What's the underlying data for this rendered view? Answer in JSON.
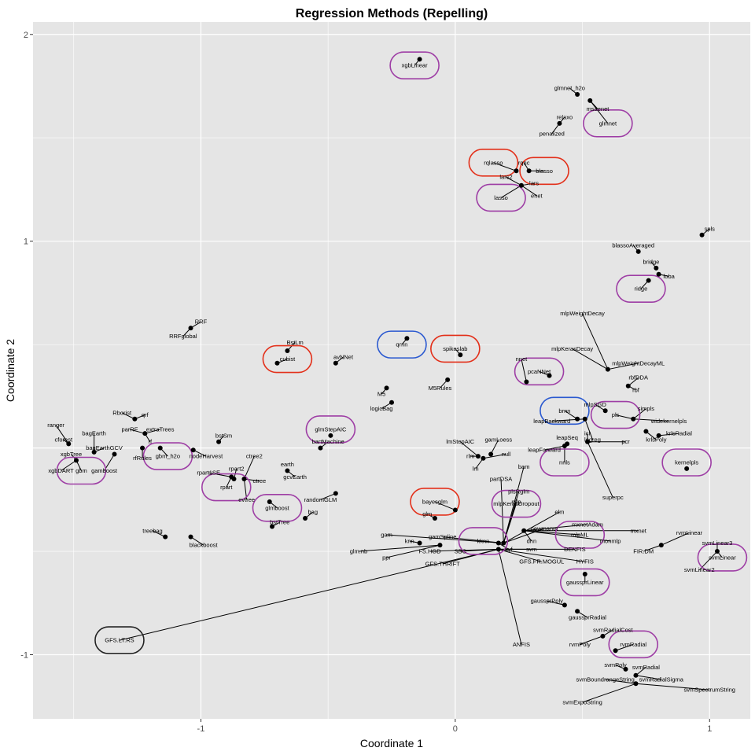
{
  "chart_data": {
    "type": "scatter",
    "title": "Regression Methods (Repelling)",
    "xlabel": "Coordinate 1",
    "ylabel": "Coordinate 2",
    "xlim": [
      -1.66,
      1.16
    ],
    "ylim": [
      -1.31,
      2.06
    ],
    "xticks": [
      -1,
      0,
      1
    ],
    "yticks": [
      -1,
      1,
      2
    ],
    "grid": true,
    "background": "#e5e5e5",
    "gridline_color": "#ffffff",
    "point_color": "#000000",
    "highlight_colors": {
      "purple": "#9e3ea5",
      "red": "#e3301a",
      "blue": "#2a59d0",
      "black": "#222222"
    },
    "points": [
      {
        "label": "xgbLinear",
        "x": -0.14,
        "y": 1.88,
        "lx": -0.16,
        "ly": 1.85,
        "hl": "purple"
      },
      {
        "label": "glmnet_h2o",
        "x": 0.48,
        "y": 1.71,
        "lx": 0.45,
        "ly": 1.74
      },
      {
        "label": "msaenet",
        "x": 0.53,
        "y": 1.68,
        "lx": 0.56,
        "ly": 1.64
      },
      {
        "label": "glmnet",
        "x": 0.53,
        "y": 1.68,
        "lx": 0.6,
        "ly": 1.57,
        "hl": "purple"
      },
      {
        "label": "relaxo",
        "x": 0.41,
        "y": 1.57,
        "lx": 0.43,
        "ly": 1.6
      },
      {
        "label": "penalized",
        "x": 0.41,
        "y": 1.57,
        "lx": 0.38,
        "ly": 1.52
      },
      {
        "label": "rqlasso",
        "x": 0.24,
        "y": 1.34,
        "lx": 0.15,
        "ly": 1.38,
        "hl": "red"
      },
      {
        "label": "rqnc",
        "x": 0.29,
        "y": 1.34,
        "lx": 0.27,
        "ly": 1.38
      },
      {
        "label": "blasso",
        "x": 0.29,
        "y": 1.34,
        "lx": 0.35,
        "ly": 1.34,
        "hl": "red"
      },
      {
        "label": "lars2",
        "x": 0.26,
        "y": 1.27,
        "lx": 0.2,
        "ly": 1.31
      },
      {
        "label": "lars",
        "x": 0.26,
        "y": 1.27,
        "lx": 0.31,
        "ly": 1.28
      },
      {
        "label": "lasso",
        "x": 0.26,
        "y": 1.27,
        "lx": 0.18,
        "ly": 1.21,
        "hl": "purple"
      },
      {
        "label": "enet",
        "x": 0.26,
        "y": 1.27,
        "lx": 0.32,
        "ly": 1.22
      },
      {
        "label": "spls",
        "x": 0.97,
        "y": 1.03,
        "lx": 1.0,
        "ly": 1.06
      },
      {
        "label": "blassoAveraged",
        "x": 0.72,
        "y": 0.95,
        "lx": 0.7,
        "ly": 0.98
      },
      {
        "label": "bridge",
        "x": 0.79,
        "y": 0.87,
        "lx": 0.77,
        "ly": 0.9
      },
      {
        "label": "foba",
        "x": 0.8,
        "y": 0.84,
        "lx": 0.84,
        "ly": 0.83
      },
      {
        "label": "ridge",
        "x": 0.76,
        "y": 0.81,
        "lx": 0.73,
        "ly": 0.77,
        "hl": "purple"
      },
      {
        "label": "RRF",
        "x": -1.04,
        "y": 0.58,
        "lx": -1.0,
        "ly": 0.61
      },
      {
        "label": "RRFglobal",
        "x": -1.04,
        "y": 0.58,
        "lx": -1.07,
        "ly": 0.54
      },
      {
        "label": "mlpWeightDecay",
        "x": 0.6,
        "y": 0.38,
        "lx": 0.5,
        "ly": 0.65
      },
      {
        "label": "mlpKerasDecay",
        "x": 0.6,
        "y": 0.38,
        "lx": 0.46,
        "ly": 0.48
      },
      {
        "label": "mlpWeightDecayML",
        "x": 0.6,
        "y": 0.38,
        "lx": 0.72,
        "ly": 0.41
      },
      {
        "label": "BstLm",
        "x": -0.66,
        "y": 0.47,
        "lx": -0.63,
        "ly": 0.51
      },
      {
        "label": "cubist",
        "x": -0.7,
        "y": 0.41,
        "lx": -0.66,
        "ly": 0.43,
        "hl": "red"
      },
      {
        "label": "avNNet",
        "x": -0.47,
        "y": 0.41,
        "lx": -0.44,
        "ly": 0.44
      },
      {
        "label": "qrnn",
        "x": -0.19,
        "y": 0.53,
        "lx": -0.21,
        "ly": 0.5,
        "hl": "blue"
      },
      {
        "label": "spikeslab",
        "x": 0.02,
        "y": 0.45,
        "lx": 0.0,
        "ly": 0.48,
        "hl": "red"
      },
      {
        "label": "nnet",
        "x": 0.28,
        "y": 0.32,
        "lx": 0.26,
        "ly": 0.43
      },
      {
        "label": "pcaNNet",
        "x": 0.37,
        "y": 0.35,
        "lx": 0.33,
        "ly": 0.37,
        "hl": "purple"
      },
      {
        "label": "M5",
        "x": -0.27,
        "y": 0.29,
        "lx": -0.29,
        "ly": 0.26
      },
      {
        "label": "M5Rules",
        "x": -0.03,
        "y": 0.33,
        "lx": -0.06,
        "ly": 0.29
      },
      {
        "label": "logicBag",
        "x": -0.25,
        "y": 0.22,
        "lx": -0.29,
        "ly": 0.19
      },
      {
        "label": "rbfDDA",
        "x": 0.68,
        "y": 0.3,
        "lx": 0.72,
        "ly": 0.34
      },
      {
        "label": "rbf",
        "x": 0.68,
        "y": 0.3,
        "lx": 0.71,
        "ly": 0.28
      },
      {
        "label": "mlpSGD",
        "x": 0.59,
        "y": 0.18,
        "lx": 0.55,
        "ly": 0.21
      },
      {
        "label": "simpls",
        "x": 0.7,
        "y": 0.14,
        "lx": 0.75,
        "ly": 0.19
      },
      {
        "label": "pls",
        "x": 0.7,
        "y": 0.14,
        "lx": 0.63,
        "ly": 0.16,
        "hl": "purple"
      },
      {
        "label": "widekernelpls",
        "x": 0.7,
        "y": 0.14,
        "lx": 0.84,
        "ly": 0.13
      },
      {
        "label": "krlsRadial",
        "x": 0.8,
        "y": 0.06,
        "lx": 0.88,
        "ly": 0.07
      },
      {
        "label": "krlsPoly",
        "x": 0.75,
        "y": 0.08,
        "lx": 0.79,
        "ly": 0.04
      },
      {
        "label": "brnn",
        "x": 0.48,
        "y": 0.14,
        "lx": 0.43,
        "ly": 0.18,
        "hl": "blue"
      },
      {
        "label": "leapBackward",
        "x": 0.51,
        "y": 0.14,
        "lx": 0.38,
        "ly": 0.13
      },
      {
        "label": "leapSeq",
        "x": 0.44,
        "y": 0.02,
        "lx": 0.44,
        "ly": 0.05
      },
      {
        "label": "logreg",
        "x": 0.51,
        "y": 0.14,
        "lx": 0.54,
        "ly": 0.04
      },
      {
        "label": "icr",
        "x": 0.52,
        "y": 0.03,
        "lx": 0.52,
        "ly": 0.07
      },
      {
        "label": "pcr",
        "x": 0.52,
        "y": 0.03,
        "lx": 0.67,
        "ly": 0.03
      },
      {
        "label": "leapForward",
        "x": 0.43,
        "y": 0.01,
        "lx": 0.35,
        "ly": -0.01
      },
      {
        "label": "nnls",
        "x": 0.43,
        "y": 0.01,
        "lx": 0.43,
        "ly": -0.07,
        "hl": "purple"
      },
      {
        "label": "superpc",
        "x": 0.52,
        "y": 0.03,
        "lx": 0.62,
        "ly": -0.24
      },
      {
        "label": "kernelpls",
        "x": 0.91,
        "y": -0.1,
        "lx": 0.91,
        "ly": -0.07,
        "hl": "purple"
      },
      {
        "label": "Rborist",
        "x": -1.26,
        "y": 0.14,
        "lx": -1.31,
        "ly": 0.17
      },
      {
        "label": "qrf",
        "x": -1.26,
        "y": 0.14,
        "lx": -1.22,
        "ly": 0.16
      },
      {
        "label": "parRF",
        "x": -1.22,
        "y": 0.07,
        "lx": -1.28,
        "ly": 0.09
      },
      {
        "label": "extraTrees",
        "x": -1.22,
        "y": 0.07,
        "lx": -1.16,
        "ly": 0.09
      },
      {
        "label": "rf",
        "x": -1.22,
        "y": 0.07,
        "lx": -1.2,
        "ly": 0.03
      },
      {
        "label": "rfRules",
        "x": -1.23,
        "y": 0.0,
        "lx": -1.23,
        "ly": -0.05
      },
      {
        "label": "gbm_h2o",
        "x": -1.16,
        "y": 0.0,
        "lx": -1.13,
        "ly": -0.04,
        "hl": "purple"
      },
      {
        "label": "ranger",
        "x": -1.52,
        "y": 0.02,
        "lx": -1.57,
        "ly": 0.11
      },
      {
        "label": "cforest",
        "x": -1.52,
        "y": 0.02,
        "lx": -1.54,
        "ly": 0.04
      },
      {
        "label": "bagEarth",
        "x": -1.42,
        "y": -0.02,
        "lx": -1.42,
        "ly": 0.07
      },
      {
        "label": "xgbTree",
        "x": -1.49,
        "y": -0.06,
        "lx": -1.51,
        "ly": -0.03
      },
      {
        "label": "bagEarthGCV",
        "x": -1.42,
        "y": -0.02,
        "lx": -1.38,
        "ly": 0.0
      },
      {
        "label": "gamboost",
        "x": -1.34,
        "y": -0.03,
        "lx": -1.38,
        "ly": -0.11
      },
      {
        "label": "xgbDART",
        "x": -1.49,
        "y": -0.06,
        "lx": -1.55,
        "ly": -0.11
      },
      {
        "label": "gbm",
        "x": -1.49,
        "y": -0.06,
        "lx": -1.47,
        "ly": -0.11,
        "hl": "purple"
      },
      {
        "label": "bstSm",
        "x": -0.93,
        "y": 0.03,
        "lx": -0.91,
        "ly": 0.06
      },
      {
        "label": "nodeHarvest",
        "x": -1.03,
        "y": -0.01,
        "lx": -0.98,
        "ly": -0.04
      },
      {
        "label": "ctree2",
        "x": -0.83,
        "y": -0.15,
        "lx": -0.79,
        "ly": -0.04
      },
      {
        "label": "rpart1SE",
        "x": -0.88,
        "y": -0.14,
        "lx": -0.97,
        "ly": -0.12
      },
      {
        "label": "rpart2",
        "x": -0.87,
        "y": -0.15,
        "lx": -0.86,
        "ly": -0.1
      },
      {
        "label": "rpart",
        "x": -0.88,
        "y": -0.14,
        "lx": -0.9,
        "ly": -0.19,
        "hl": "purple"
      },
      {
        "label": "ctree",
        "x": -0.83,
        "y": -0.15,
        "lx": -0.77,
        "ly": -0.16
      },
      {
        "label": "evtree",
        "x": -0.83,
        "y": -0.15,
        "lx": -0.82,
        "ly": -0.25
      },
      {
        "label": "earth",
        "x": -0.66,
        "y": -0.11,
        "lx": -0.66,
        "ly": -0.08
      },
      {
        "label": "gcvEarth",
        "x": -0.66,
        "y": -0.11,
        "lx": -0.63,
        "ly": -0.14
      },
      {
        "label": "glmStepAIC",
        "x": -0.49,
        "y": 0.06,
        "lx": -0.49,
        "ly": 0.09,
        "hl": "purple"
      },
      {
        "label": "bartMachine",
        "x": -0.53,
        "y": 0.0,
        "lx": -0.5,
        "ly": 0.03
      },
      {
        "label": "glmboost",
        "x": -0.73,
        "y": -0.26,
        "lx": -0.7,
        "ly": -0.29,
        "hl": "purple"
      },
      {
        "label": "randomGLM",
        "x": -0.47,
        "y": -0.22,
        "lx": -0.53,
        "ly": -0.25
      },
      {
        "label": "bag",
        "x": -0.59,
        "y": -0.34,
        "lx": -0.56,
        "ly": -0.31
      },
      {
        "label": "bstTree",
        "x": -0.72,
        "y": -0.38,
        "lx": -0.69,
        "ly": -0.36
      },
      {
        "label": "treebag",
        "x": -1.14,
        "y": -0.43,
        "lx": -1.19,
        "ly": -0.4
      },
      {
        "label": "blackboost",
        "x": -1.04,
        "y": -0.43,
        "lx": -0.99,
        "ly": -0.47
      },
      {
        "label": "lmStepAIC",
        "x": 0.09,
        "y": -0.04,
        "lx": 0.02,
        "ly": 0.03
      },
      {
        "label": "gamLoess",
        "x": 0.14,
        "y": -0.03,
        "lx": 0.17,
        "ly": 0.04
      },
      {
        "label": "rlm",
        "x": 0.09,
        "y": -0.04,
        "lx": 0.06,
        "ly": -0.04
      },
      {
        "label": "null",
        "x": 0.11,
        "y": -0.05,
        "lx": 0.2,
        "ly": -0.03
      },
      {
        "label": "lm",
        "x": 0.11,
        "y": -0.05,
        "lx": 0.08,
        "ly": -0.1
      },
      {
        "label": "bam",
        "x": 0.19,
        "y": -0.46,
        "lx": 0.27,
        "ly": -0.09
      },
      {
        "label": "partDSA",
        "x": 0.19,
        "y": -0.46,
        "lx": 0.18,
        "ly": -0.15
      },
      {
        "label": "plsRglm",
        "x": 0.19,
        "y": -0.46,
        "lx": 0.25,
        "ly": -0.21
      },
      {
        "label": "mlpKerasDropout",
        "x": 0.19,
        "y": -0.46,
        "lx": 0.24,
        "ly": -0.27,
        "hl": "purple"
      },
      {
        "label": "mlp",
        "x": 0.19,
        "y": -0.46,
        "lx": 0.24,
        "ly": -0.26
      },
      {
        "label": "elm",
        "x": 0.19,
        "y": -0.46,
        "lx": 0.41,
        "ly": -0.31
      },
      {
        "label": "bayesglm",
        "x": 0.0,
        "y": -0.3,
        "lx": -0.08,
        "ly": -0.26,
        "hl": "red"
      },
      {
        "label": "glm",
        "x": -0.08,
        "y": -0.34,
        "lx": -0.11,
        "ly": -0.32
      },
      {
        "label": "newmanet",
        "x": 0.19,
        "y": -0.46,
        "lx": 0.35,
        "ly": -0.39
      },
      {
        "label": "mxnetAdam",
        "x": 0.27,
        "y": -0.4,
        "lx": 0.52,
        "ly": -0.37
      },
      {
        "label": "mxnet",
        "x": 0.27,
        "y": -0.4,
        "lx": 0.72,
        "ly": -0.4
      },
      {
        "label": "mlpML",
        "x": 0.27,
        "y": -0.4,
        "lx": 0.49,
        "ly": -0.42,
        "hl": "purple"
      },
      {
        "label": "monmlp",
        "x": 0.27,
        "y": -0.4,
        "lx": 0.61,
        "ly": -0.45
      },
      {
        "label": "gam",
        "x": 0.19,
        "y": -0.46,
        "lx": -0.27,
        "ly": -0.42
      },
      {
        "label": "gamSpline",
        "x": 0.19,
        "y": -0.46,
        "lx": -0.05,
        "ly": -0.43
      },
      {
        "label": "knn",
        "x": -0.14,
        "y": -0.46,
        "lx": -0.18,
        "ly": -0.45
      },
      {
        "label": "kknn",
        "x": 0.17,
        "y": -0.46,
        "lx": 0.11,
        "ly": -0.45,
        "hl": "purple"
      },
      {
        "label": "xyf",
        "x": 0.17,
        "y": -0.46,
        "lx": 0.21,
        "ly": -0.49
      },
      {
        "label": "dnn",
        "x": 0.27,
        "y": -0.4,
        "lx": 0.3,
        "ly": -0.45
      },
      {
        "label": "glm.nb",
        "x": -0.06,
        "y": -0.47,
        "lx": -0.38,
        "ly": -0.5
      },
      {
        "label": "FS.HGD",
        "x": 0.17,
        "y": -0.49,
        "lx": -0.1,
        "ly": -0.5
      },
      {
        "label": "SBC",
        "x": 0.17,
        "y": -0.49,
        "lx": 0.02,
        "ly": -0.5
      },
      {
        "label": "svm",
        "x": 0.17,
        "y": -0.49,
        "lx": 0.3,
        "ly": -0.49
      },
      {
        "label": "DENFIS",
        "x": 0.17,
        "y": -0.49,
        "lx": 0.47,
        "ly": -0.49
      },
      {
        "label": "FIR.DM",
        "x": 0.81,
        "y": -0.47,
        "lx": 0.74,
        "ly": -0.5
      },
      {
        "label": "ppr",
        "x": -0.06,
        "y": -0.47,
        "lx": -0.27,
        "ly": -0.53
      },
      {
        "label": "GFS.THRIFT",
        "x": 0.17,
        "y": -0.49,
        "lx": -0.05,
        "ly": -0.56
      },
      {
        "label": "GFS.FR.MOGUL",
        "x": 0.17,
        "y": -0.49,
        "lx": 0.34,
        "ly": -0.55
      },
      {
        "label": "HYFIS",
        "x": 0.17,
        "y": -0.49,
        "lx": 0.51,
        "ly": -0.55
      },
      {
        "label": "gaussprLinear",
        "x": 0.51,
        "y": -0.61,
        "lx": 0.51,
        "ly": -0.65,
        "hl": "purple"
      },
      {
        "label": "rvmLinear",
        "x": 0.81,
        "y": -0.47,
        "lx": 0.92,
        "ly": -0.41
      },
      {
        "label": "svmLinear3",
        "x": 1.03,
        "y": -0.5,
        "lx": 1.03,
        "ly": -0.46
      },
      {
        "label": "svmLinear",
        "x": 1.03,
        "y": -0.5,
        "lx": 1.05,
        "ly": -0.53,
        "hl": "purple"
      },
      {
        "label": "svmLinear2",
        "x": 1.03,
        "y": -0.5,
        "lx": 0.96,
        "ly": -0.59
      },
      {
        "label": "GFS.LT.RS",
        "x": 0.17,
        "y": -0.49,
        "lx": -1.32,
        "ly": -0.93,
        "hl": "black"
      },
      {
        "label": "gaussprPoly",
        "x": 0.43,
        "y": -0.76,
        "lx": 0.36,
        "ly": -0.74
      },
      {
        "label": "gaussprRadial",
        "x": 0.48,
        "y": -0.79,
        "lx": 0.52,
        "ly": -0.82
      },
      {
        "label": "svmRadialCost",
        "x": 0.58,
        "y": -0.91,
        "lx": 0.62,
        "ly": -0.88
      },
      {
        "label": "rvmPoly",
        "x": 0.58,
        "y": -0.91,
        "lx": 0.49,
        "ly": -0.95
      },
      {
        "label": "rvmRadial",
        "x": 0.63,
        "y": -0.98,
        "lx": 0.7,
        "ly": -0.95,
        "hl": "purple"
      },
      {
        "label": "ANFIS",
        "x": 0.17,
        "y": -0.49,
        "lx": 0.26,
        "ly": -0.95
      },
      {
        "label": "svmPoly",
        "x": 0.67,
        "y": -1.07,
        "lx": 0.63,
        "ly": -1.05
      },
      {
        "label": "svmRadial",
        "x": 0.71,
        "y": -1.1,
        "lx": 0.75,
        "ly": -1.06
      },
      {
        "label": "svmBoundrangeString",
        "x": 0.71,
        "y": -1.14,
        "lx": 0.59,
        "ly": -1.12
      },
      {
        "label": "svmRadialSigma",
        "x": 0.71,
        "y": -1.1,
        "lx": 0.81,
        "ly": -1.12
      },
      {
        "label": "svmSpectrumString",
        "x": 0.71,
        "y": -1.14,
        "lx": 1.0,
        "ly": -1.17
      },
      {
        "label": "svmExpoString",
        "x": 0.71,
        "y": -1.14,
        "lx": 0.5,
        "ly": -1.23
      }
    ]
  }
}
